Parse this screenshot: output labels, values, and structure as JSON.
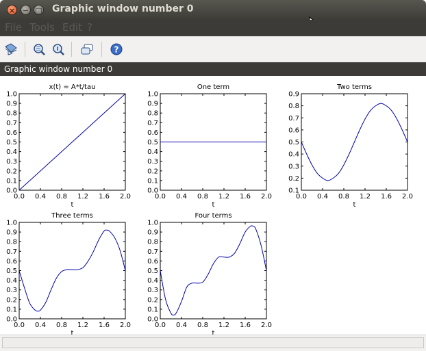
{
  "window": {
    "title": "Graphic window number 0",
    "close_glyph": "×",
    "minimize_glyph": "−",
    "maximize_glyph": "□"
  },
  "menu": {
    "items": [
      "File",
      "Tools",
      "Edit",
      "?"
    ]
  },
  "toolbar": {
    "icons": [
      "datatip-icon",
      "zoom-icon",
      "zoom-reset-icon",
      "rotate-icon",
      "help-icon"
    ]
  },
  "panel": {
    "title": "Graphic window number 0"
  },
  "colors": {
    "line": "#0000aa",
    "accent": "#3c3b37"
  },
  "chart_data": [
    {
      "type": "line",
      "title": "x(t) = A*t/tau",
      "xlabel": "t",
      "xlim": [
        0,
        2
      ],
      "ylim": [
        0,
        1
      ],
      "xticks": [
        "0.0",
        "0.4",
        "0.8",
        "1.2",
        "1.6",
        "2.0"
      ],
      "yticks": [
        "0.0",
        "0.1",
        "0.2",
        "0.3",
        "0.4",
        "0.5",
        "0.6",
        "0.7",
        "0.8",
        "0.9",
        "1.0"
      ],
      "series": [
        {
          "x": [
            0,
            2
          ],
          "values": [
            0,
            1
          ]
        }
      ]
    },
    {
      "type": "line",
      "title": "One term",
      "xlabel": "t",
      "xlim": [
        0,
        2
      ],
      "ylim": [
        0,
        1
      ],
      "xticks": [
        "0.0",
        "0.4",
        "0.8",
        "1.2",
        "1.6",
        "2.0"
      ],
      "yticks": [
        "0.0",
        "0.1",
        "0.2",
        "0.3",
        "0.4",
        "0.5",
        "0.6",
        "0.7",
        "0.8",
        "0.9",
        "1.0"
      ],
      "series": [
        {
          "x": [
            0,
            2
          ],
          "values": [
            0.5,
            0.5
          ]
        }
      ]
    },
    {
      "type": "line",
      "title": "Two terms",
      "xlabel": "t",
      "xlim": [
        0,
        2
      ],
      "ylim": [
        0.1,
        0.9
      ],
      "xticks": [
        "0.0",
        "0.4",
        "0.8",
        "1.2",
        "1.6",
        "2.0"
      ],
      "yticks": [
        "0.1",
        "0.2",
        "0.3",
        "0.4",
        "0.5",
        "0.6",
        "0.7",
        "0.8",
        "0.9"
      ],
      "series": [
        {
          "x": [
            0,
            0.1,
            0.2,
            0.3,
            0.4,
            0.5,
            0.6,
            0.7,
            0.8,
            0.9,
            1.0,
            1.1,
            1.2,
            1.3,
            1.4,
            1.5,
            1.6,
            1.7,
            1.8,
            1.9,
            2.0
          ],
          "values": [
            0.5,
            0.4,
            0.31,
            0.24,
            0.2,
            0.18,
            0.2,
            0.24,
            0.31,
            0.4,
            0.5,
            0.6,
            0.69,
            0.76,
            0.8,
            0.82,
            0.8,
            0.76,
            0.69,
            0.6,
            0.5
          ]
        }
      ]
    },
    {
      "type": "line",
      "title": "Three terms",
      "xlabel": "t",
      "xlim": [
        0,
        2
      ],
      "ylim": [
        0,
        1
      ],
      "xticks": [
        "0.0",
        "0.4",
        "0.8",
        "1.2",
        "1.6",
        "2.0"
      ],
      "yticks": [
        "0.0",
        "0.1",
        "0.2",
        "0.3",
        "0.4",
        "0.5",
        "0.6",
        "0.7",
        "0.8",
        "0.9",
        "1.0"
      ],
      "series": [
        {
          "x": [
            0,
            0.1,
            0.2,
            0.3,
            0.35,
            0.4,
            0.5,
            0.6,
            0.7,
            0.8,
            0.9,
            1.0,
            1.1,
            1.2,
            1.3,
            1.4,
            1.5,
            1.6,
            1.65,
            1.7,
            1.8,
            1.9,
            2.0
          ],
          "values": [
            0.5,
            0.32,
            0.16,
            0.09,
            0.08,
            0.09,
            0.17,
            0.3,
            0.42,
            0.49,
            0.51,
            0.51,
            0.51,
            0.53,
            0.6,
            0.7,
            0.82,
            0.91,
            0.92,
            0.91,
            0.84,
            0.71,
            0.5
          ]
        }
      ]
    },
    {
      "type": "line",
      "title": "Four terms",
      "xlabel": "t",
      "xlim": [
        0,
        2
      ],
      "ylim": [
        0,
        1
      ],
      "xticks": [
        "0.0",
        "0.4",
        "0.8",
        "1.2",
        "1.6",
        "2.0"
      ],
      "yticks": [
        "0.0",
        "0.1",
        "0.2",
        "0.3",
        "0.4",
        "0.5",
        "0.6",
        "0.7",
        "0.8",
        "0.9",
        "1.0"
      ],
      "series": [
        {
          "x": [
            0,
            0.1,
            0.2,
            0.25,
            0.3,
            0.4,
            0.5,
            0.6,
            0.7,
            0.8,
            0.9,
            1.0,
            1.1,
            1.2,
            1.3,
            1.4,
            1.5,
            1.6,
            1.7,
            1.75,
            1.8,
            1.9,
            2.0
          ],
          "values": [
            0.5,
            0.2,
            0.06,
            0.04,
            0.06,
            0.18,
            0.33,
            0.37,
            0.37,
            0.38,
            0.46,
            0.57,
            0.64,
            0.64,
            0.64,
            0.68,
            0.78,
            0.9,
            0.96,
            0.96,
            0.93,
            0.76,
            0.5
          ]
        }
      ]
    }
  ]
}
